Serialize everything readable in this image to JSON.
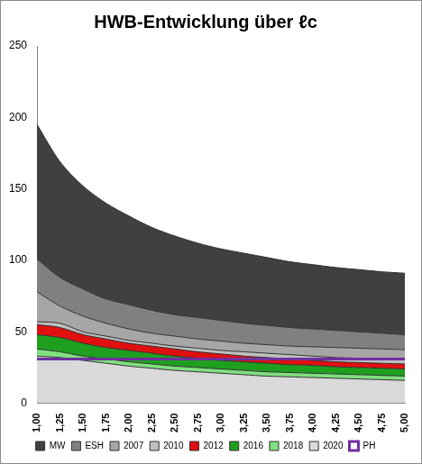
{
  "chart_data": {
    "type": "area",
    "title": "HWB-Entwicklung über ℓc",
    "stacked": true,
    "grid": false,
    "legend": "bottom",
    "categories": [
      "1,00",
      "1,25",
      "1,50",
      "1,75",
      "2,00",
      "2,25",
      "2,50",
      "2,75",
      "3,00",
      "3,25",
      "3,50",
      "3,75",
      "4,00",
      "4,25",
      "4,50",
      "4,75",
      "5,00"
    ],
    "ylim": [
      0,
      250
    ],
    "yticks": [
      0,
      50,
      100,
      150,
      200,
      250
    ],
    "series": [
      {
        "name": "MW",
        "color": "#404040",
        "values": [
          94,
          81,
          72,
          67,
          62,
          58,
          55,
          52,
          50,
          49,
          47.5,
          46,
          45,
          44,
          43.5,
          43,
          43
        ]
      },
      {
        "name": "ESH",
        "color": "#808080",
        "values": [
          23,
          20,
          19,
          17,
          17,
          16,
          15,
          15,
          14.5,
          14,
          13.5,
          13,
          12.5,
          12,
          11.5,
          11,
          10.5
        ]
      },
      {
        "name": "2007",
        "color": "#a6a6a6",
        "values": [
          21,
          12,
          11,
          9,
          8,
          7,
          7,
          6.5,
          6.5,
          6,
          6,
          6,
          6.5,
          7,
          7,
          7,
          7
        ]
      },
      {
        "name": "2010",
        "color": "#bfbfbf",
        "values": [
          2,
          3,
          2,
          2,
          2,
          2,
          2,
          2.5,
          2.5,
          3,
          3,
          3,
          3,
          3,
          3,
          3,
          3
        ]
      },
      {
        "name": "2012",
        "color": "#e01010",
        "values": [
          7,
          7,
          6,
          6,
          5,
          5,
          5,
          4.5,
          4.5,
          4,
          4,
          4,
          3.5,
          3.5,
          3.5,
          3.5,
          3.5
        ]
      },
      {
        "name": "2016",
        "color": "#1ea01e",
        "values": [
          10,
          10,
          9,
          8,
          8,
          7.5,
          7,
          6.5,
          6,
          6,
          6,
          5.5,
          5.5,
          5,
          5,
          5,
          5
        ]
      },
      {
        "name": "2018",
        "color": "#7fe07f",
        "values": [
          5,
          4,
          3,
          3,
          3,
          3,
          3,
          3,
          3,
          3,
          3,
          3,
          3,
          3,
          3,
          3,
          3
        ]
      },
      {
        "name": "2020",
        "color": "#d9d9d9",
        "values": [
          33,
          32,
          30,
          28,
          26,
          24.5,
          23,
          22,
          21,
          20,
          19,
          18.5,
          18,
          17.5,
          17,
          16.5,
          16
        ]
      },
      {
        "name": "PH",
        "color": "#7030a0",
        "type": "line",
        "values": [
          31,
          31,
          31,
          31,
          31,
          31,
          31,
          31,
          31,
          31,
          31,
          31,
          31,
          31,
          31,
          31,
          31
        ]
      }
    ]
  }
}
